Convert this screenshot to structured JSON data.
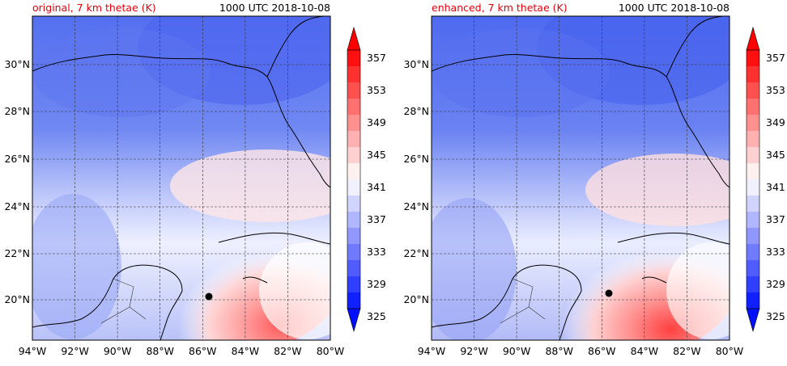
{
  "panels": [
    {
      "title_left": "original, 7 km thetae (K)",
      "title_right": "1000 UTC 2018-10-08"
    },
    {
      "title_left": "enhanced, 7 km thetae (K)",
      "title_right": "1000 UTC 2018-10-08"
    }
  ],
  "lat_ticks": [
    "30°N",
    "28°N",
    "26°N",
    "24°N",
    "22°N",
    "20°N"
  ],
  "lon_ticks": [
    "94°W",
    "92°W",
    "90°W",
    "88°W",
    "86°W",
    "84°W",
    "82°W",
    "80°W"
  ],
  "colorbar_ticks": [
    "357",
    "353",
    "349",
    "345",
    "341",
    "337",
    "333",
    "329",
    "325"
  ],
  "colors": {
    "title_accent": "#e8000b",
    "storm_marker": "#000000"
  }
}
